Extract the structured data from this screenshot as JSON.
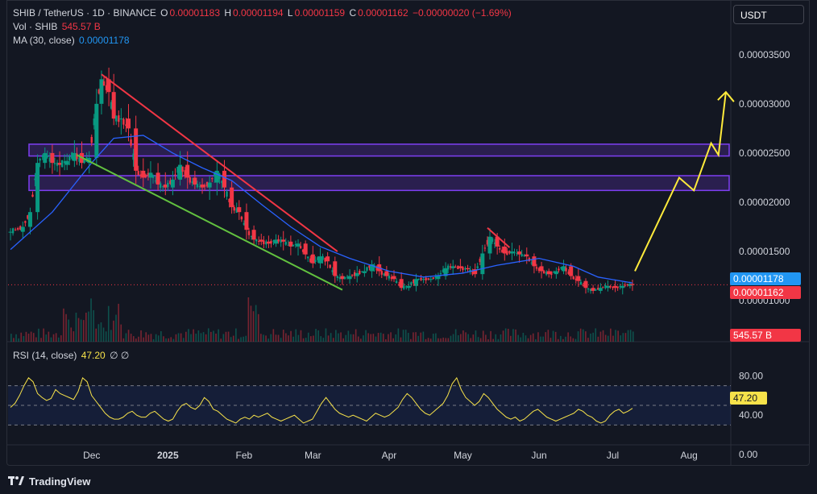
{
  "header": {
    "symbol": "SHIB / TetherUS · 1D · BINANCE",
    "o_label": "O",
    "o_value": "0.00001183",
    "h_label": "H",
    "h_value": "0.00001194",
    "l_label": "L",
    "l_value": "0.00001159",
    "c_label": "C",
    "c_value": "0.00001162",
    "change": "−0.00000020 (−1.69%)",
    "vol_label": "Vol · SHIB",
    "vol_value": "545.57 B",
    "ma_label": "MA (30, close)",
    "ma_value": "0.00001178"
  },
  "currency_button": "USDT",
  "price_tags": {
    "ma": "0.00001178",
    "last": "0.00001162",
    "volume": "545.57 B"
  },
  "rsi": {
    "label": "RSI (14, close)",
    "value": "47.20",
    "icons": "∅ ∅"
  },
  "footer": {
    "brand": "TradingView"
  },
  "colors": {
    "up": "#089981",
    "down": "#f23645",
    "ma": "#2962ff",
    "rsi": "#f7e24a",
    "zone": "#7e3ff2",
    "downtrend": "#f23645",
    "support": "#62c13f",
    "projection": "#ffeb3b"
  },
  "chart_data": [
    {
      "type": "candlestick",
      "symbol": "SHIB/USDT",
      "interval": "1D",
      "y_ticks": [
        "0.00003500",
        "0.00003000",
        "0.00002500",
        "0.00002000",
        "0.00001500",
        "0.00001000"
      ],
      "ylim": [
        7.8e-06,
        3.67e-05
      ],
      "x_ticks": [
        "Dec",
        "2025",
        "Feb",
        "Mar",
        "Apr",
        "May",
        "Jun",
        "Jul",
        "Aug"
      ],
      "x_tick_dates": [
        "2024-12-01",
        "2025-01-01",
        "2025-02-01",
        "2025-03-01",
        "2025-04-01",
        "2025-05-01",
        "2025-06-01",
        "2025-07-01",
        "2025-08-01"
      ],
      "x_range": [
        "2024-10-28",
        "2025-08-18"
      ],
      "close_path": [
        [
          "2024-10-29",
          1.7e-05
        ],
        [
          "2024-11-03",
          1.75e-05
        ],
        [
          "2024-11-06",
          1.9e-05
        ],
        [
          "2024-11-09",
          2.4e-05
        ],
        [
          "2024-11-12",
          2.5e-05
        ],
        [
          "2024-11-15",
          2.4e-05
        ],
        [
          "2024-11-18",
          2.38e-05
        ],
        [
          "2024-11-21",
          2.42e-05
        ],
        [
          "2024-11-24",
          2.5e-05
        ],
        [
          "2024-11-27",
          2.4e-05
        ],
        [
          "2024-11-30",
          2.45e-05
        ],
        [
          "2024-12-03",
          3e-05
        ],
        [
          "2024-12-05",
          3.25e-05
        ],
        [
          "2024-12-08",
          3.12e-05
        ],
        [
          "2024-12-10",
          2.85e-05
        ],
        [
          "2024-12-13",
          2.85e-05
        ],
        [
          "2024-12-16",
          2.75e-05
        ],
        [
          "2024-12-19",
          2.32e-05
        ],
        [
          "2024-12-22",
          2.25e-05
        ],
        [
          "2024-12-25",
          2.3e-05
        ],
        [
          "2024-12-28",
          2.18e-05
        ],
        [
          "2024-12-31",
          2.15e-05
        ],
        [
          "2025-01-03",
          2.23e-05
        ],
        [
          "2025-01-06",
          2.38e-05
        ],
        [
          "2025-01-09",
          2.25e-05
        ],
        [
          "2025-01-12",
          2.18e-05
        ],
        [
          "2025-01-15",
          2.15e-05
        ],
        [
          "2025-01-18",
          2.2e-05
        ],
        [
          "2025-01-21",
          2.32e-05
        ],
        [
          "2025-01-24",
          2.15e-05
        ],
        [
          "2025-01-27",
          1.95e-05
        ],
        [
          "2025-01-30",
          1.9e-05
        ],
        [
          "2025-02-02",
          1.72e-05
        ],
        [
          "2025-02-05",
          1.62e-05
        ],
        [
          "2025-02-08",
          1.6e-05
        ],
        [
          "2025-02-11",
          1.58e-05
        ],
        [
          "2025-02-14",
          1.62e-05
        ],
        [
          "2025-02-17",
          1.6e-05
        ],
        [
          "2025-02-20",
          1.55e-05
        ],
        [
          "2025-02-23",
          1.58e-05
        ],
        [
          "2025-02-26",
          1.47e-05
        ],
        [
          "2025-03-01",
          1.38e-05
        ],
        [
          "2025-03-04",
          1.45e-05
        ],
        [
          "2025-03-07",
          1.4e-05
        ],
        [
          "2025-03-10",
          1.25e-05
        ],
        [
          "2025-03-13",
          1.22e-05
        ],
        [
          "2025-03-16",
          1.25e-05
        ],
        [
          "2025-03-19",
          1.28e-05
        ],
        [
          "2025-03-22",
          1.3e-05
        ],
        [
          "2025-03-25",
          1.37e-05
        ],
        [
          "2025-03-28",
          1.3e-05
        ],
        [
          "2025-03-31",
          1.25e-05
        ],
        [
          "2025-04-03",
          1.22e-05
        ],
        [
          "2025-04-06",
          1.13e-05
        ],
        [
          "2025-04-09",
          1.15e-05
        ],
        [
          "2025-04-12",
          1.22e-05
        ],
        [
          "2025-04-15",
          1.22e-05
        ],
        [
          "2025-04-18",
          1.22e-05
        ],
        [
          "2025-04-21",
          1.25e-05
        ],
        [
          "2025-04-24",
          1.33e-05
        ],
        [
          "2025-04-27",
          1.35e-05
        ],
        [
          "2025-04-30",
          1.33e-05
        ],
        [
          "2025-05-03",
          1.32e-05
        ],
        [
          "2025-05-06",
          1.27e-05
        ],
        [
          "2025-05-09",
          1.48e-05
        ],
        [
          "2025-05-12",
          1.65e-05
        ],
        [
          "2025-05-15",
          1.55e-05
        ],
        [
          "2025-05-18",
          1.48e-05
        ],
        [
          "2025-05-21",
          1.5e-05
        ],
        [
          "2025-05-24",
          1.47e-05
        ],
        [
          "2025-05-27",
          1.45e-05
        ],
        [
          "2025-05-30",
          1.35e-05
        ],
        [
          "2025-06-02",
          1.3e-05
        ],
        [
          "2025-06-05",
          1.27e-05
        ],
        [
          "2025-06-08",
          1.3e-05
        ],
        [
          "2025-06-11",
          1.35e-05
        ],
        [
          "2025-06-14",
          1.25e-05
        ],
        [
          "2025-06-17",
          1.2e-05
        ],
        [
          "2025-06-20",
          1.13e-05
        ],
        [
          "2025-06-23",
          1.1e-05
        ],
        [
          "2025-06-26",
          1.13e-05
        ],
        [
          "2025-06-29",
          1.15e-05
        ],
        [
          "2025-07-02",
          1.13e-05
        ],
        [
          "2025-07-05",
          1.15e-05
        ],
        [
          "2025-07-08",
          1.17e-05
        ],
        [
          "2025-07-09",
          1.16e-05
        ]
      ],
      "ma30_path": [
        [
          "2024-10-29",
          1.52e-05
        ],
        [
          "2024-11-15",
          1.9e-05
        ],
        [
          "2024-12-01",
          2.4e-05
        ],
        [
          "2024-12-10",
          2.65e-05
        ],
        [
          "2024-12-22",
          2.68e-05
        ],
        [
          "2025-01-03",
          2.5e-05
        ],
        [
          "2025-01-15",
          2.35e-05
        ],
        [
          "2025-01-27",
          2.22e-05
        ],
        [
          "2025-02-08",
          1.98e-05
        ],
        [
          "2025-02-20",
          1.75e-05
        ],
        [
          "2025-03-04",
          1.55e-05
        ],
        [
          "2025-03-16",
          1.43e-05
        ],
        [
          "2025-04-01",
          1.3e-05
        ],
        [
          "2025-04-15",
          1.24e-05
        ],
        [
          "2025-05-01",
          1.28e-05
        ],
        [
          "2025-05-15",
          1.36e-05
        ],
        [
          "2025-06-01",
          1.43e-05
        ],
        [
          "2025-06-15",
          1.35e-05
        ],
        [
          "2025-06-25",
          1.24e-05
        ],
        [
          "2025-07-09",
          1.18e-05
        ]
      ],
      "last_close": 1.162e-05,
      "ma30_last": 1.178e-05,
      "resistance_zones": [
        [
          2.47e-05,
          2.59e-05
        ],
        [
          2.12e-05,
          2.27e-05
        ]
      ],
      "downtrend_line": [
        [
          "2024-12-05",
          3.3e-05
        ],
        [
          "2025-03-11",
          1.5e-05
        ]
      ],
      "support_line": [
        [
          "2024-11-25",
          2.48e-05
        ],
        [
          "2025-03-13",
          1.11e-05
        ]
      ],
      "minor_downtrend_line": [
        [
          "2025-05-11",
          1.74e-05
        ],
        [
          "2025-05-20",
          1.54e-05
        ]
      ],
      "projection_path": [
        [
          "2025-07-10",
          1.3e-05
        ],
        [
          "2025-07-28",
          2.25e-05
        ],
        [
          "2025-08-03",
          2.12e-05
        ],
        [
          "2025-08-10",
          2.6e-05
        ],
        [
          "2025-08-13",
          2.48e-05
        ],
        [
          "2025-08-16",
          3.12e-05
        ]
      ]
    },
    {
      "type": "line",
      "name": "RSI (14, close)",
      "ylim": [
        0,
        100
      ],
      "y_ticks": [
        "80.00",
        "40.00",
        "0.00"
      ],
      "bands": [
        70,
        30
      ],
      "values": [
        48,
        52,
        60,
        70,
        78,
        74,
        62,
        58,
        55,
        57,
        66,
        62,
        60,
        58,
        56,
        64,
        78,
        74,
        60,
        54,
        48,
        42,
        38,
        36,
        36,
        38,
        42,
        44,
        40,
        38,
        38,
        42,
        44,
        40,
        36,
        34,
        36,
        44,
        50,
        52,
        48,
        46,
        50,
        58,
        54,
        46,
        44,
        40,
        36,
        34,
        32,
        36,
        38,
        36,
        40,
        38,
        40,
        42,
        38,
        36,
        34,
        36,
        38,
        40,
        36,
        32,
        34,
        36,
        44,
        52,
        58,
        52,
        46,
        42,
        40,
        38,
        40,
        38,
        36,
        34,
        38,
        42,
        40,
        38,
        40,
        44,
        48,
        56,
        62,
        58,
        52,
        46,
        42,
        40,
        44,
        48,
        52,
        60,
        72,
        78,
        66,
        58,
        54,
        50,
        54,
        62,
        58,
        52,
        46,
        42,
        38,
        36,
        38,
        34,
        36,
        40,
        44,
        46,
        42,
        38,
        36,
        34,
        36,
        38,
        40,
        42,
        46,
        44,
        40,
        38,
        34,
        32,
        34,
        40,
        44,
        46,
        42,
        44,
        47
      ],
      "value": 47.2
    },
    {
      "type": "bar",
      "name": "Volume",
      "last": "545.57 B"
    }
  ]
}
